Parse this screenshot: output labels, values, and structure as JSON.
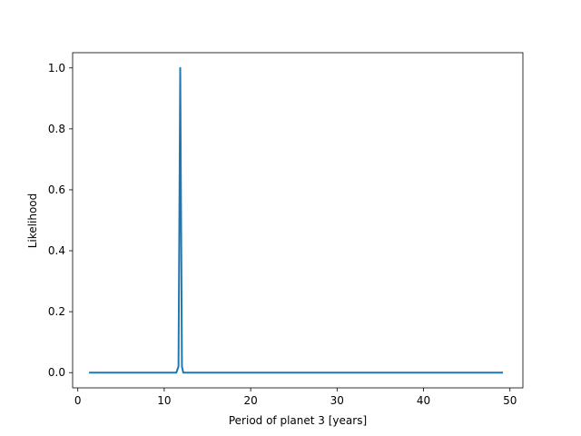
{
  "chart_data": {
    "type": "line",
    "title": "",
    "xlabel": "Period of planet 3 [years]",
    "ylabel": "Likelihood",
    "xlim": [
      -0.6,
      51.5
    ],
    "ylim": [
      -0.05,
      1.05
    ],
    "xticks": [
      0,
      10,
      20,
      30,
      40,
      50
    ],
    "xtick_labels": [
      "0",
      "10",
      "20",
      "30",
      "40",
      "50"
    ],
    "yticks": [
      0.0,
      0.2,
      0.4,
      0.6,
      0.8,
      1.0
    ],
    "ytick_labels": [
      "0.0",
      "0.2",
      "0.4",
      "0.6",
      "0.8",
      "1.0"
    ],
    "grid": false,
    "legend": "none",
    "series": [
      {
        "color": "#1f77b4",
        "x": [
          1.3,
          11.4,
          11.65,
          11.75,
          11.85,
          11.95,
          12.05,
          12.2,
          13.0,
          49.2
        ],
        "y": [
          0.0,
          0.0,
          0.02,
          0.5,
          1.0,
          0.5,
          0.02,
          0.0,
          0.0,
          0.0
        ]
      }
    ]
  }
}
